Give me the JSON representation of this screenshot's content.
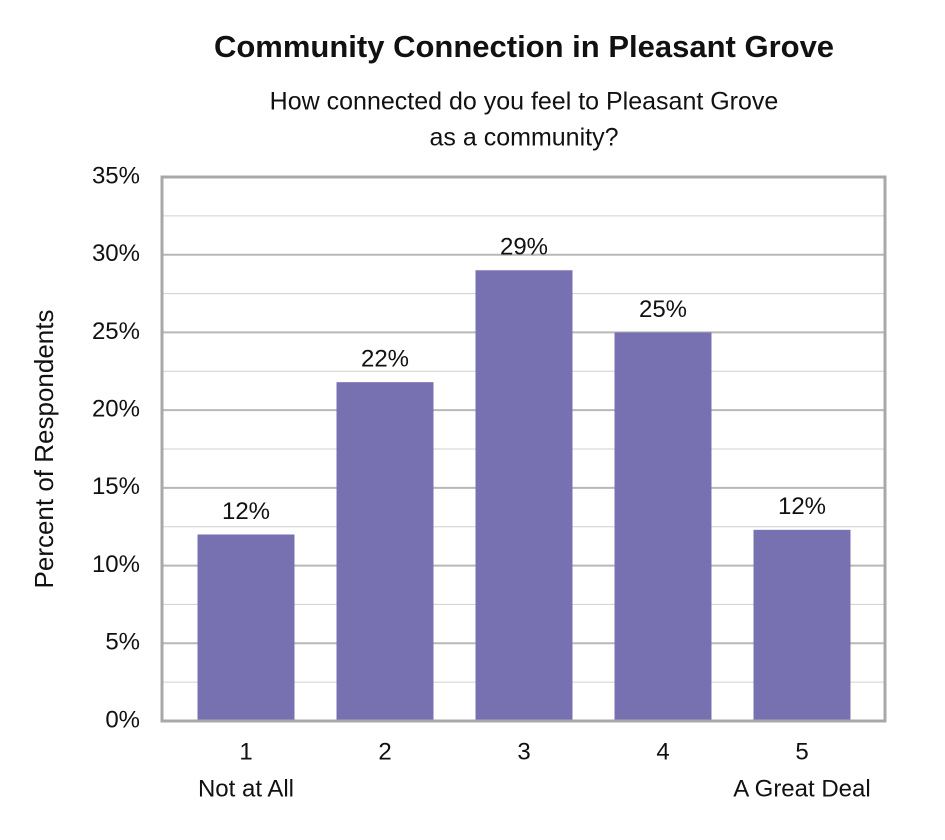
{
  "chart_data": {
    "type": "bar",
    "title": "Community Connection in Pleasant Grove",
    "subtitle": [
      "How connected do you feel to Pleasant Grove",
      "as a community?"
    ],
    "y_label": "Percent of Respondents",
    "categories": [
      "1",
      "2",
      "3",
      "4",
      "5"
    ],
    "category_sublabels": [
      "Not at All",
      null,
      null,
      null,
      "A Great Deal"
    ],
    "values": [
      12,
      21.8,
      29,
      25,
      12.3
    ],
    "value_labels": [
      "12%",
      "22%",
      "29%",
      "25%",
      "12%"
    ],
    "color": "#7771b2",
    "ylim": [
      0,
      35
    ],
    "yticks": [
      {
        "value": 0,
        "label": "0%"
      },
      {
        "value": 5,
        "label": "5%"
      },
      {
        "value": 10,
        "label": "10%"
      },
      {
        "value": 15,
        "label": "15%"
      },
      {
        "value": 20,
        "label": "20%"
      },
      {
        "value": 25,
        "label": "25%"
      },
      {
        "value": 30,
        "label": "30%"
      },
      {
        "value": 35,
        "label": "35%"
      }
    ],
    "minor_yticks": [
      2.5,
      7.5,
      12.5,
      17.5,
      22.5,
      27.5,
      32.5
    ],
    "grid": true
  }
}
